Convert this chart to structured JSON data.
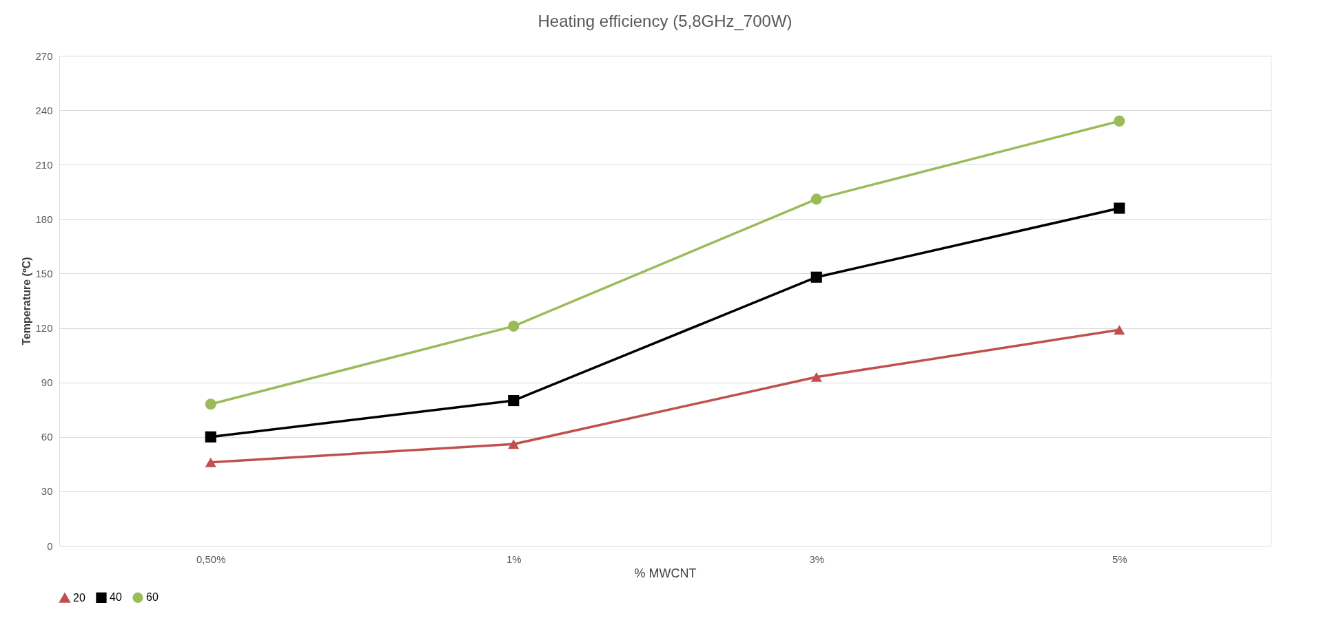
{
  "chart_data": {
    "type": "line",
    "title": "Heating efficiency (5,8GHz_700W)",
    "xlabel": "% MWCNT",
    "ylabel": "Temperature (ºC)",
    "categories": [
      "0,50%",
      "1%",
      "3%",
      "5%"
    ],
    "series": [
      {
        "name": "20",
        "color": "#c0504d",
        "marker": "triangle",
        "values": [
          46,
          56,
          93,
          119
        ]
      },
      {
        "name": "40",
        "color": "#000000",
        "marker": "square",
        "values": [
          60,
          80,
          148,
          186
        ]
      },
      {
        "name": "60",
        "color": "#9bbb59",
        "marker": "circle",
        "values": [
          78,
          121,
          191,
          234
        ]
      }
    ],
    "ylim": [
      0,
      270
    ],
    "yticks": [
      0,
      30,
      60,
      90,
      120,
      150,
      180,
      210,
      240,
      270
    ],
    "grid": "y",
    "legend": "bottom",
    "line_style": "solid"
  }
}
